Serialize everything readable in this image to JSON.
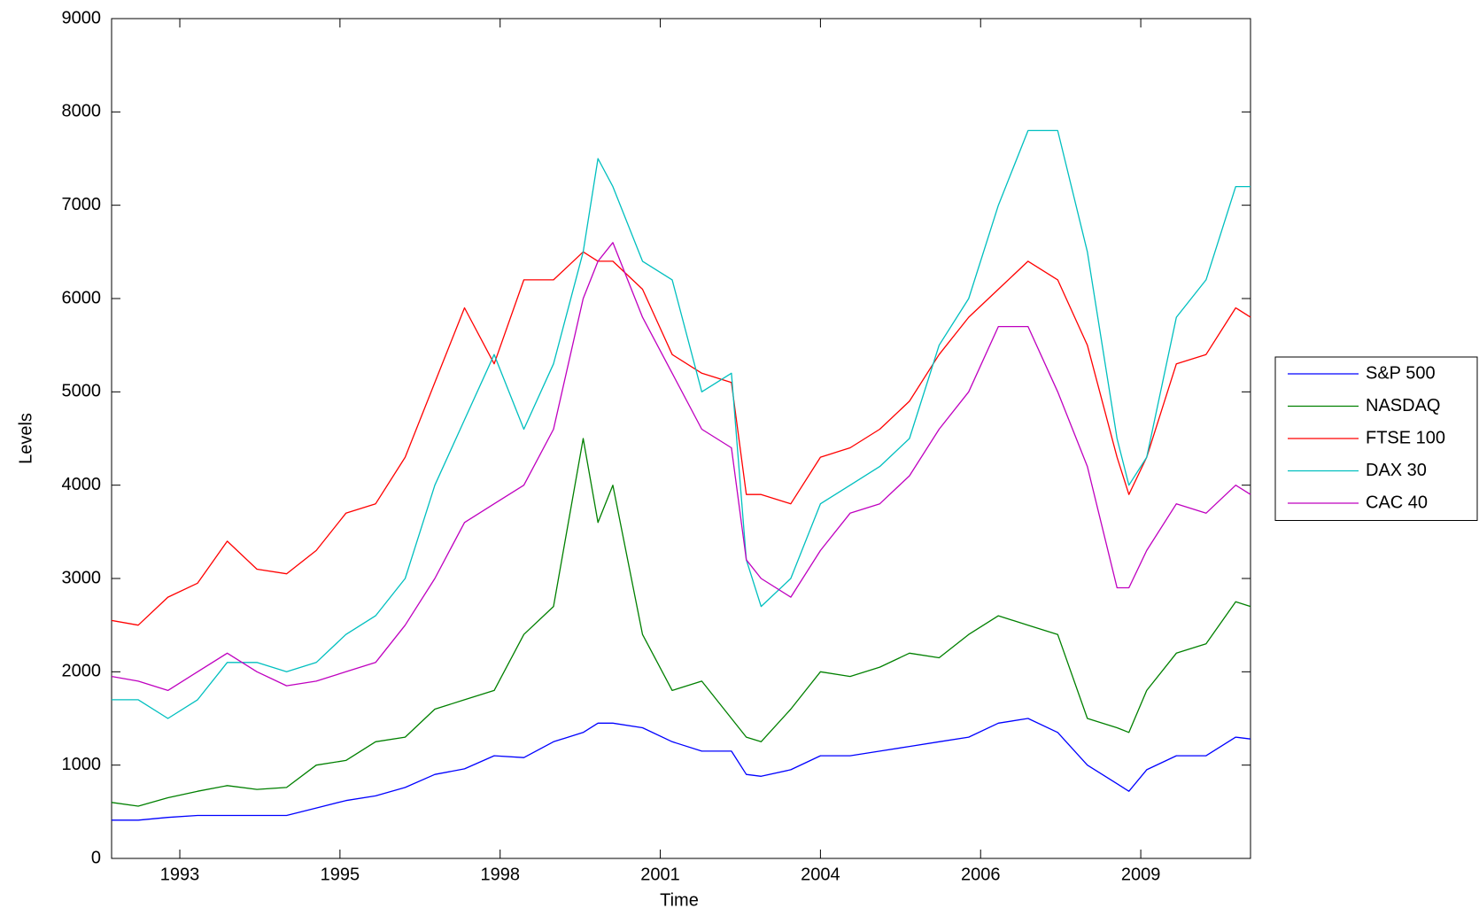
{
  "chart_data": {
    "type": "line",
    "x_label": "Time",
    "y_label": "Levels",
    "x": [
      1992.05,
      1992.5,
      1993.0,
      1993.5,
      1994.0,
      1994.5,
      1995.0,
      1995.5,
      1996.0,
      1996.5,
      1997.0,
      1997.5,
      1998.0,
      1998.5,
      1999.0,
      1999.5,
      2000.0,
      2000.25,
      2000.5,
      2001.0,
      2001.5,
      2002.0,
      2002.5,
      2002.75,
      2003.0,
      2003.5,
      2004.0,
      2004.5,
      2005.0,
      2005.5,
      2006.0,
      2006.5,
      2007.0,
      2007.5,
      2008.0,
      2008.5,
      2009.0,
      2009.2,
      2009.5,
      2010.0,
      2010.5,
      2011.0,
      2011.25
    ],
    "series": [
      {
        "name": "S&P 500",
        "color": "#0000ff",
        "values": [
          410,
          410,
          440,
          460,
          460,
          460,
          460,
          540,
          620,
          670,
          760,
          900,
          960,
          1100,
          1080,
          1250,
          1350,
          1450,
          1450,
          1400,
          1250,
          1150,
          1150,
          900,
          880,
          950,
          1100,
          1100,
          1150,
          1200,
          1250,
          1300,
          1450,
          1500,
          1350,
          1000,
          800,
          720,
          950,
          1100,
          1100,
          1300,
          1280
        ]
      },
      {
        "name": "NASDAQ",
        "color": "#008000",
        "values": [
          600,
          560,
          650,
          720,
          780,
          740,
          760,
          1000,
          1050,
          1250,
          1300,
          1600,
          1700,
          1800,
          2400,
          2700,
          4500,
          3600,
          4000,
          2400,
          1800,
          1900,
          1500,
          1300,
          1250,
          1600,
          2000,
          1950,
          2050,
          2200,
          2150,
          2400,
          2600,
          2500,
          2400,
          1500,
          1400,
          1350,
          1800,
          2200,
          2300,
          2750,
          2700
        ]
      },
      {
        "name": "FTSE 100",
        "color": "#ff0000",
        "values": [
          2550,
          2500,
          2800,
          2950,
          3400,
          3100,
          3050,
          3300,
          3700,
          3800,
          4300,
          5100,
          5900,
          5300,
          6200,
          6200,
          6500,
          6400,
          6400,
          6100,
          5400,
          5200,
          5100,
          3900,
          3900,
          3800,
          4300,
          4400,
          4600,
          4900,
          5400,
          5800,
          6100,
          6400,
          6200,
          5500,
          4300,
          3900,
          4300,
          5300,
          5400,
          5900,
          5800
        ]
      },
      {
        "name": "DAX 30",
        "color": "#00bfbf",
        "values": [
          1700,
          1700,
          1500,
          1700,
          2100,
          2100,
          2000,
          2100,
          2400,
          2600,
          3000,
          4000,
          4700,
          5400,
          4600,
          5300,
          6500,
          7500,
          7200,
          6400,
          6200,
          5000,
          5200,
          3200,
          2700,
          3000,
          3800,
          4000,
          4200,
          4500,
          5500,
          6000,
          7000,
          7800,
          7800,
          6500,
          4500,
          4000,
          4300,
          5800,
          6200,
          7200,
          7200
        ]
      },
      {
        "name": "CAC 40",
        "color": "#bf00bf",
        "values": [
          1950,
          1900,
          1800,
          2000,
          2200,
          2000,
          1850,
          1900,
          2000,
          2100,
          2500,
          3000,
          3600,
          3800,
          4000,
          4600,
          6000,
          6400,
          6600,
          5800,
          5200,
          4600,
          4400,
          3200,
          3000,
          2800,
          3300,
          3700,
          3800,
          4100,
          4600,
          5000,
          5700,
          5700,
          5000,
          4200,
          2900,
          2900,
          3300,
          3800,
          3700,
          4000,
          3900
        ]
      }
    ],
    "xlim": [
      1992.05,
      2011.25
    ],
    "xticks": [
      {
        "value": 1993.2,
        "label": "1993"
      },
      {
        "value": 1995.9,
        "label": "1995"
      },
      {
        "value": 1998.6,
        "label": "1998"
      },
      {
        "value": 2001.3,
        "label": "2001"
      },
      {
        "value": 2004.0,
        "label": "2004"
      },
      {
        "value": 2006.7,
        "label": "2006"
      },
      {
        "value": 2009.4,
        "label": "2009"
      }
    ],
    "ylim": [
      0,
      9000
    ],
    "yticks": [
      0,
      1000,
      2000,
      3000,
      4000,
      5000,
      6000,
      7000,
      8000,
      9000
    ],
    "grid": false,
    "legend": "outside-right"
  }
}
